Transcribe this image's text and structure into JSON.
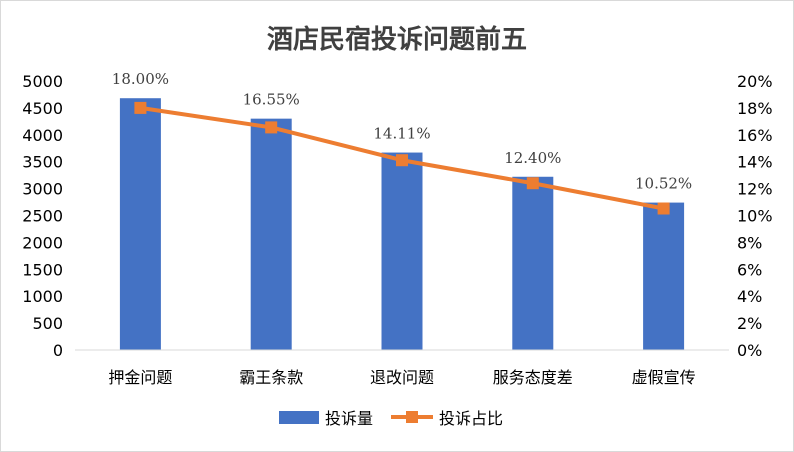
{
  "chart_data": {
    "type": "bar",
    "title": "酒店民宿投诉问题前五",
    "categories": [
      "押金问题",
      "霸王条款",
      "退改问题",
      "服务态度差",
      "虚假宣传"
    ],
    "series": [
      {
        "name": "投诉量",
        "type": "bar",
        "axis": "left",
        "color": "#4472C4",
        "values": [
          4680,
          4300,
          3670,
          3220,
          2740
        ]
      },
      {
        "name": "投诉占比",
        "type": "line",
        "axis": "right",
        "color": "#ED7D31",
        "values": [
          18.0,
          16.55,
          14.11,
          12.4,
          10.52
        ],
        "data_labels": [
          "18.00%",
          "16.55%",
          "14.11%",
          "12.40%",
          "10.52%"
        ]
      }
    ],
    "y_left": {
      "ylim": [
        0,
        5000
      ],
      "ticks": [
        "0",
        "500",
        "1000",
        "1500",
        "2000",
        "2500",
        "3000",
        "3500",
        "4000",
        "4500",
        "5000"
      ]
    },
    "y_right": {
      "ylim": [
        0,
        20
      ],
      "ticks": [
        "0%",
        "2%",
        "4%",
        "6%",
        "8%",
        "10%",
        "12%",
        "14%",
        "16%",
        "18%",
        "20%"
      ]
    },
    "grid": false,
    "legend": "bottom-center"
  }
}
